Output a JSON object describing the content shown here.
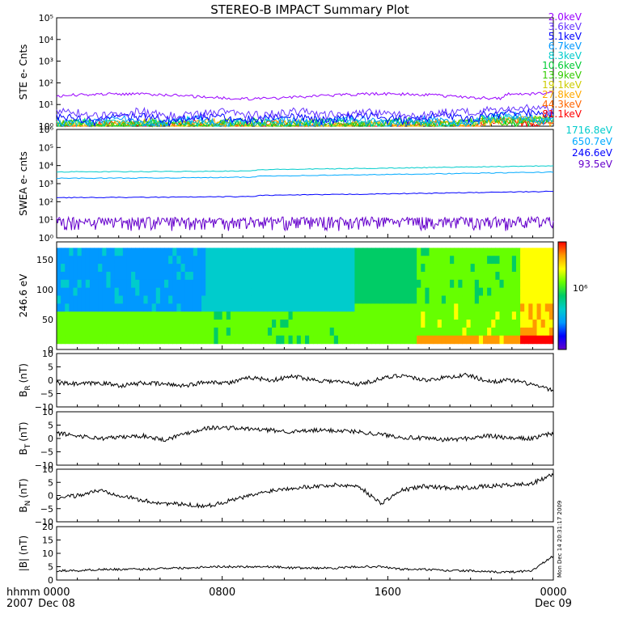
{
  "title": "STEREO-B IMPACT Summary Plot",
  "footer": {
    "row1_label": "hhmm",
    "row2_label": "2007",
    "ticks": [
      {
        "time": "0000",
        "date": "Dec 08"
      },
      {
        "time": "0800",
        "date": ""
      },
      {
        "time": "1600",
        "date": ""
      },
      {
        "time": "0000",
        "date": "Dec 09"
      }
    ]
  },
  "side_stamp": "Mon Dec 14 20:31:17 2009",
  "colors": {
    "ste": [
      "#9900ff",
      "#6633ff",
      "#0000ff",
      "#0099ff",
      "#00cccc",
      "#00cc33",
      "#33cc00",
      "#cccc00",
      "#ffaa00",
      "#ff6600",
      "#ff0000"
    ],
    "swea": [
      "#6600cc",
      "#0000ff",
      "#00aaff",
      "#00cccc"
    ],
    "colorbar": [
      "#6600cc",
      "#0000ff",
      "#0099ff",
      "#00cccc",
      "#00cc66",
      "#66ff00",
      "#ffff00",
      "#ff9900",
      "#ff0000"
    ]
  },
  "chart_data": [
    {
      "type": "line",
      "ylabel": "STE e- Cnts",
      "yscale": "log",
      "ylim": [
        1,
        100000
      ],
      "yticks": [
        "10⁰",
        "10¹",
        "10²",
        "10³",
        "10⁴",
        "10⁵"
      ],
      "x_hours": [
        0,
        24
      ],
      "series": [
        {
          "name": "2.0keV",
          "base": 25
        },
        {
          "name": "3.6keV",
          "base": 4
        },
        {
          "name": "5.1keV",
          "base": 2.5
        },
        {
          "name": "6.7keV",
          "base": 1.8
        },
        {
          "name": "8.3keV",
          "base": 1.5
        },
        {
          "name": "10.6keV",
          "base": 1.4
        },
        {
          "name": "13.9keV",
          "base": 1.3
        },
        {
          "name": "19.1keV",
          "base": 1.25
        },
        {
          "name": "27.8keV",
          "base": 1.2
        },
        {
          "name": "44.3keV",
          "base": 1.15
        },
        {
          "name": "81.1keV",
          "base": 1.1
        }
      ]
    },
    {
      "type": "line",
      "ylabel": "SWEA e- cnts",
      "yscale": "log",
      "ylim": [
        1,
        1000000
      ],
      "yticks": [
        "10⁰",
        "10¹",
        "10²",
        "10³",
        "10⁴",
        "10⁵",
        "10⁶"
      ],
      "series": [
        {
          "name": "1716.8eV",
          "base": 8
        },
        {
          "name": "650.7eV",
          "base": 170
        },
        {
          "name": "246.6eV",
          "base": 2000
        },
        {
          "name": "93.5eV",
          "base": 4500
        }
      ]
    },
    {
      "type": "heatmap",
      "ylabel": "246.6 eV",
      "ylim": [
        0,
        180
      ],
      "yticks": [
        "0",
        "50",
        "100",
        "150"
      ],
      "colorbar_label": "10⁶"
    },
    {
      "type": "line",
      "ylabel_main": "B",
      "ylabel_sub": "R",
      "ylabel_unit": "(nT)",
      "ylim": [
        -10,
        10
      ],
      "yticks": [
        "−10",
        "−5",
        "0",
        "5",
        "10"
      ],
      "series": [
        {
          "values": [
            -1,
            -1.5,
            -1,
            -2,
            -1,
            -1.5,
            -2,
            -0.5,
            -1,
            1,
            0,
            1.5,
            0,
            -0.5,
            -1.5,
            0.5,
            2,
            0,
            1,
            2,
            -0.5,
            0,
            -1.5,
            -4
          ]
        }
      ]
    },
    {
      "type": "line",
      "ylabel_main": "B",
      "ylabel_sub": "T",
      "ylabel_unit": "(nT)",
      "ylim": [
        -10,
        10
      ],
      "yticks": [
        "−10",
        "−5",
        "0",
        "5",
        "10"
      ],
      "series": [
        {
          "values": [
            2,
            1,
            0,
            0.5,
            1,
            -0.5,
            2,
            4,
            4,
            3.5,
            3,
            2.5,
            3,
            3,
            2.5,
            1.5,
            0.5,
            0,
            -0.5,
            0,
            1,
            0,
            0,
            2
          ]
        }
      ]
    },
    {
      "type": "line",
      "ylabel_main": "B",
      "ylabel_sub": "N",
      "ylabel_unit": "(nT)",
      "ylim": [
        -10,
        10
      ],
      "yticks": [
        "−10",
        "−5",
        "0",
        "5",
        "10"
      ],
      "series": [
        {
          "values": [
            -1,
            0,
            2,
            0,
            -2,
            -3,
            -3.5,
            -4,
            -2,
            0,
            2,
            3,
            3.5,
            4,
            3.5,
            -3,
            2,
            3.5,
            3,
            3,
            3.5,
            4,
            4.5,
            8
          ]
        }
      ]
    },
    {
      "type": "line",
      "ylabel_main": "|B| (nT)",
      "ylim": [
        0,
        20
      ],
      "yticks": [
        "0",
        "5",
        "10",
        "15",
        "20"
      ],
      "series": [
        {
          "values": [
            3.5,
            3.5,
            4,
            4,
            4,
            4.5,
            4.5,
            5,
            5,
            5,
            5,
            4.5,
            4.5,
            4.5,
            5,
            5,
            4,
            4,
            3.5,
            3.5,
            3,
            3,
            3.5,
            9
          ]
        }
      ]
    }
  ]
}
